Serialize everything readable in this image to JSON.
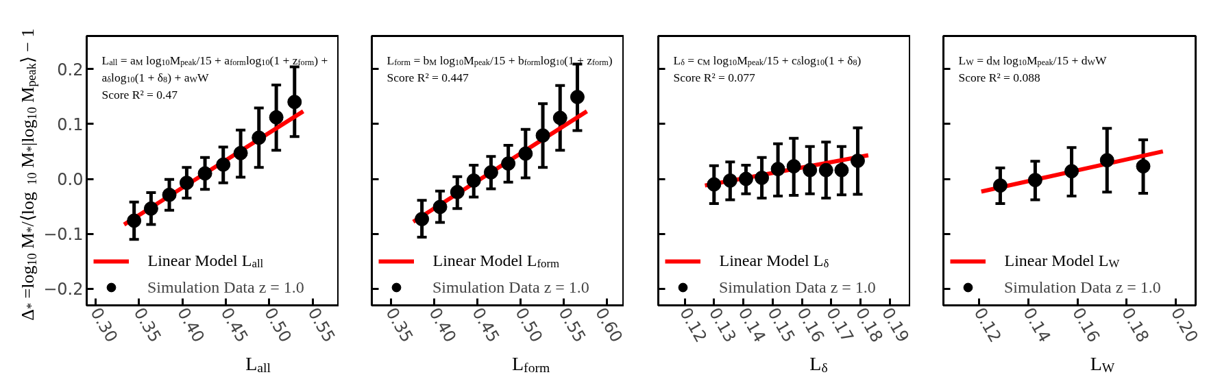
{
  "chart_data": [
    {
      "type": "scatter",
      "xlabel": "L$_{all}$",
      "ylabel": "Δ$_{*}$ =log$_{10}$ M$_{*}$/⟨log$_{10}$ M$_{*}$|log$_{10}$ M$_{peak}$⟩ − 1",
      "annotations": [
        "L$_{all}$ = a$_{M}$ log$_{10}$M$_{peak}$/15 + a$_{form}$log$_{10}$(1 + z$_{form}$) +",
        "a$_{δ}$log$_{10}$(1 + δ$_{8}$) + a$_{W}$W",
        "Score R² = 0.47"
      ],
      "xlim": [
        0.29,
        0.58
      ],
      "ylim": [
        -0.23,
        0.26
      ],
      "xticks": [
        {
          "value": 0.3,
          "label": "0.30"
        },
        {
          "value": 0.35,
          "label": "0.35"
        },
        {
          "value": 0.4,
          "label": "0.40"
        },
        {
          "value": 0.45,
          "label": "0.45"
        },
        {
          "value": 0.5,
          "label": "0.50"
        },
        {
          "value": 0.55,
          "label": "0.55"
        }
      ],
      "yticks": [
        {
          "value": -0.2,
          "label": "−0.2"
        },
        {
          "value": -0.1,
          "label": "−0.1"
        },
        {
          "value": 0.0,
          "label": "0.0"
        },
        0.1,
        0.2
      ],
      "grid": false,
      "legend": "bottom left",
      "series": [
        {
          "name": "Linear Model L$_{all}$",
          "type": "line",
          "color": "#ff0000",
          "x": [
            0.333,
            0.539
          ],
          "values": [
            -0.083,
            0.123
          ]
        },
        {
          "name": "Simulation Data z = 1.0",
          "marker": "circle",
          "color": "#000000",
          "x": [
            0.3445,
            0.364,
            0.385,
            0.405,
            0.426,
            0.447,
            0.467,
            0.488,
            0.508,
            0.529
          ],
          "values": [
            -0.076,
            -0.054,
            -0.029,
            -0.007,
            0.01,
            0.026,
            0.047,
            0.075,
            0.112,
            0.14
          ],
          "errors": [
            [
              -0.11,
              -0.042
            ],
            [
              -0.083,
              -0.025
            ],
            [
              -0.057,
              -0.001
            ],
            [
              -0.035,
              0.021
            ],
            [
              -0.019,
              0.039
            ],
            [
              -0.007,
              0.058
            ],
            [
              0.003,
              0.089
            ],
            [
              0.021,
              0.129
            ],
            [
              0.052,
              0.171
            ],
            [
              0.077,
              0.204
            ]
          ]
        }
      ]
    },
    {
      "type": "scatter",
      "xlabel": "L$_{form}$",
      "annotations": [
        "L$_{form}$ = b$_{M}$ log$_{10}$M$_{peak}$/15 + b$_{form}$log$_{10}$(1 + z$_{form}$)",
        "Score R² = 0.447"
      ],
      "xlim": [
        0.328,
        0.62
      ],
      "ylim": [
        -0.23,
        0.26
      ],
      "tick_labels": "x",
      "xticks": [
        {
          "value": 0.35,
          "label": "0.35"
        },
        {
          "value": 0.4,
          "label": "0.40"
        },
        {
          "value": 0.45,
          "label": "0.45"
        },
        {
          "value": 0.5,
          "label": "0.50"
        },
        {
          "value": 0.55,
          "label": "0.55"
        },
        {
          "value": 0.6,
          "label": "0.60"
        }
      ],
      "yticks": [
        -0.2,
        -0.1,
        0.0,
        0.1,
        0.2
      ],
      "grid": false,
      "legend": "bottom left",
      "series": [
        {
          "name": "Linear Model L$_{form}$",
          "type": "line",
          "color": "#ff0000",
          "x": [
            0.376,
            0.577
          ],
          "values": [
            -0.078,
            0.123
          ]
        },
        {
          "name": "Simulation Data z = 1.0",
          "marker": "circle",
          "color": "#000000",
          "x": [
            0.386,
            0.407,
            0.427,
            0.446,
            0.466,
            0.486,
            0.506,
            0.526,
            0.546,
            0.566
          ],
          "values": [
            -0.073,
            -0.051,
            -0.024,
            -0.003,
            0.012,
            0.028,
            0.046,
            0.079,
            0.111,
            0.149
          ],
          "errors": [
            [
              -0.106,
              -0.039
            ],
            [
              -0.079,
              -0.022
            ],
            [
              -0.054,
              0.004
            ],
            [
              -0.033,
              0.025
            ],
            [
              -0.018,
              0.041
            ],
            [
              -0.006,
              0.061
            ],
            [
              0.002,
              0.09
            ],
            [
              0.021,
              0.137
            ],
            [
              0.052,
              0.17
            ],
            [
              0.088,
              0.209
            ]
          ]
        }
      ]
    },
    {
      "type": "scatter",
      "xlabel": "L$_{δ}$",
      "annotations": [
        "L$_{δ}$ = c$_{M}$ log$_{10}$M$_{peak}$/15 + c$_{δ}$log$_{10}$(1 + δ$_{8}$)",
        "Score R² = 0.077"
      ],
      "xlim": [
        0.111,
        0.197
      ],
      "ylim": [
        -0.23,
        0.26
      ],
      "tick_labels": "x",
      "xticks": [
        0.12,
        0.13,
        0.14,
        0.15,
        0.16,
        0.17,
        0.18,
        0.19
      ],
      "yticks": [
        -0.2,
        -0.1,
        0.0,
        0.1,
        0.2
      ],
      "grid": false,
      "legend": "bottom left",
      "series": [
        {
          "name": "Linear Model L$_{δ}$",
          "type": "line",
          "color": "#ff0000",
          "x": [
            0.1269,
            0.1826
          ],
          "values": [
            -0.012,
            0.043
          ]
        },
        {
          "name": "Simulation Data z = 1.0",
          "marker": "circle",
          "color": "#000000",
          "x": [
            0.13,
            0.1355,
            0.1409,
            0.1463,
            0.1518,
            0.1572,
            0.1627,
            0.1682,
            0.1735,
            0.179
          ],
          "values": [
            -0.01,
            -0.003,
            0.0,
            0.002,
            0.018,
            0.023,
            0.016,
            0.016,
            0.016,
            0.033
          ],
          "errors": [
            [
              -0.045,
              0.024
            ],
            [
              -0.038,
              0.031
            ],
            [
              -0.027,
              0.025
            ],
            [
              -0.035,
              0.039
            ],
            [
              -0.031,
              0.064
            ],
            [
              -0.03,
              0.074
            ],
            [
              -0.027,
              0.059
            ],
            [
              -0.035,
              0.067
            ],
            [
              -0.029,
              0.059
            ],
            [
              -0.028,
              0.093
            ]
          ]
        }
      ]
    },
    {
      "type": "scatter",
      "xlabel": "L$_{W}$",
      "annotations": [
        "L$_{W}$ = d$_{M}$ log$_{10}$M$_{peak}$/15 + d$_{W}$W",
        "Score R² = 0.088"
      ],
      "xlim": [
        0.1055,
        0.208
      ],
      "ylim": [
        -0.23,
        0.26
      ],
      "tick_labels": "x",
      "xticks": [
        0.12,
        0.14,
        0.16,
        0.18,
        {
          "value": 0.2,
          "label": "0.20"
        }
      ],
      "yticks": [
        -0.2,
        -0.1,
        0.0,
        0.1,
        0.2
      ],
      "grid": false,
      "legend": "bottom left",
      "series": [
        {
          "name": "Linear Model L$_{W}$",
          "type": "line",
          "color": "#ff0000",
          "x": [
            0.1209,
            0.1947
          ],
          "values": [
            -0.023,
            0.05
          ]
        },
        {
          "name": "Simulation Data z = 1.0",
          "marker": "circle",
          "color": "#000000",
          "x": [
            0.1286,
            0.1428,
            0.1576,
            0.172,
            0.1867
          ],
          "values": [
            -0.012,
            -0.002,
            0.014,
            0.034,
            0.023
          ],
          "errors": [
            [
              -0.045,
              0.02
            ],
            [
              -0.038,
              0.032
            ],
            [
              -0.031,
              0.057
            ],
            [
              -0.024,
              0.092
            ],
            [
              -0.026,
              0.071
            ]
          ]
        }
      ]
    }
  ]
}
